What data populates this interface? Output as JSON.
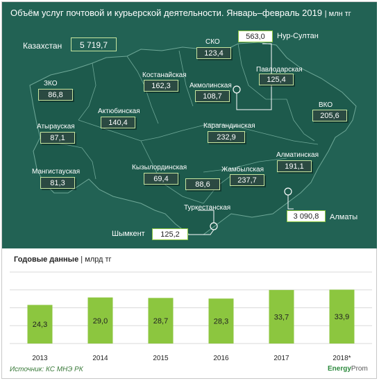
{
  "title": "Объём услуг почтовой и курьерской деятельности. Январь–февраль 2019",
  "title_unit": "млн тг",
  "kazakhstan": {
    "label": "Казахстан",
    "value": "5 719,7"
  },
  "regions": [
    {
      "name": "СКО",
      "value": "123,4"
    },
    {
      "name": "Костанайская",
      "value": "162,3"
    },
    {
      "name": "Акмолинская",
      "value": "108,7"
    },
    {
      "name": "Павлодарская",
      "value": "125,4"
    },
    {
      "name": "ЗКО",
      "value": "86,8"
    },
    {
      "name": "Актюбинская",
      "value": "140,4"
    },
    {
      "name": "ВКО",
      "value": "205,6"
    },
    {
      "name": "Атырауская",
      "value": "87,1"
    },
    {
      "name": "Карагандинская",
      "value": "232,9"
    },
    {
      "name": "Алматинская",
      "value": "191,1"
    },
    {
      "name": "Мангистауская",
      "value": "81,3"
    },
    {
      "name": "Кызылординская",
      "value": "69,4"
    },
    {
      "name": "Жамбылская",
      "value": "237,7"
    },
    {
      "name": "Туркестанская",
      "value": "88,6"
    }
  ],
  "cities": [
    {
      "name": "Нур-Султан",
      "value": "563,0"
    },
    {
      "name": "Алматы",
      "value": "3 090,8"
    },
    {
      "name": "Шымкент",
      "value": "125,2"
    }
  ],
  "annual_title": "Годовые данные",
  "annual_unit": "млрд тг",
  "source": "Источник: КС МНЭ РК",
  "brand_prefix": "Energy",
  "brand_suffix": "Prom",
  "colors": {
    "map_bg": "#226254",
    "region_fill": "#1d5a4c",
    "bar": "#8cc63f",
    "accent_border": "#c8e6a0"
  },
  "chart_data": {
    "type": "bar",
    "categories": [
      "2013",
      "2014",
      "2015",
      "2016",
      "2017",
      "2018*"
    ],
    "values": [
      24.3,
      29.0,
      28.7,
      28.3,
      33.7,
      33.9
    ],
    "value_labels": [
      "24,3",
      "29,0",
      "28,7",
      "28,3",
      "33,7",
      "33,9"
    ],
    "title": "Годовые данные",
    "ylabel": "млрд тг",
    "ylim": [
      0,
      45
    ],
    "grid": true,
    "legend": "none"
  }
}
